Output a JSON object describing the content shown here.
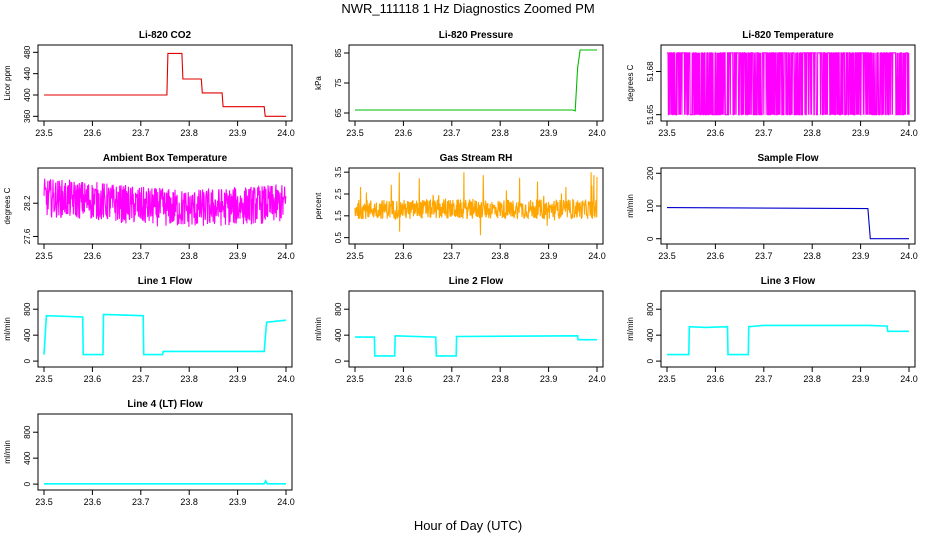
{
  "figure": {
    "title": "NWR_111118  1 Hz Diagnostics Zoomed PM",
    "xlabel": "Hour of Day (UTC)"
  },
  "chart_data": [
    {
      "type": "line",
      "title": "Li-820 CO2",
      "ylabel": "Licor ppm",
      "color": "#e00000",
      "xlim": [
        23.5,
        24.0
      ],
      "xticks": [
        "23.5",
        "23.6",
        "23.7",
        "23.8",
        "23.9",
        "24.0"
      ],
      "ylim": [
        355,
        490
      ],
      "yticks": [
        360,
        400,
        440,
        480
      ],
      "x": [
        23.5,
        23.752,
        23.754,
        23.756,
        23.785,
        23.787,
        23.825,
        23.827,
        23.868,
        23.87,
        23.955,
        23.957,
        24.0
      ],
      "values": [
        400,
        400,
        400,
        478,
        478,
        430,
        430,
        404,
        404,
        378,
        378,
        360,
        360
      ]
    },
    {
      "type": "line",
      "title": "Li-820 Pressure",
      "ylabel": "kPa",
      "color": "#00bb00",
      "xlim": [
        23.5,
        24.0
      ],
      "xticks": [
        "23.5",
        "23.6",
        "23.7",
        "23.8",
        "23.9",
        "24.0"
      ],
      "ylim": [
        63,
        87
      ],
      "yticks": [
        65,
        75,
        85
      ],
      "x": [
        23.5,
        23.95,
        23.955,
        23.96,
        23.965,
        24.0
      ],
      "values": [
        66,
        66,
        65.7,
        80,
        86,
        86
      ]
    },
    {
      "type": "line",
      "title": "Li-820 Temperature",
      "ylabel": "degrees C",
      "color": "#ff00ff",
      "xlim": [
        23.5,
        24.0
      ],
      "xticks": [
        "23.5",
        "23.6",
        "23.7",
        "23.8",
        "23.9",
        "24.0"
      ],
      "ylim": [
        51.647,
        51.697
      ],
      "yticks": [
        51.65,
        51.68
      ],
      "x": [
        23.5,
        24.0
      ],
      "values": [
        51.693,
        51.693
      ],
      "noise": "dense switching between 51.693 and 51.650"
    },
    {
      "type": "line",
      "title": "Ambient Box Temperature",
      "ylabel": "degrees C",
      "color": "#ff00ff",
      "xlim": [
        23.5,
        24.0
      ],
      "xticks": [
        "23.5",
        "23.6",
        "23.7",
        "23.8",
        "23.9",
        "24.0"
      ],
      "ylim": [
        27.5,
        28.8
      ],
      "yticks": [
        27.6,
        28.2
      ],
      "x": [
        23.5,
        23.6,
        23.7,
        23.8,
        23.9,
        24.0
      ],
      "values": [
        28.3,
        28.25,
        28.15,
        28.1,
        28.15,
        28.2
      ]
    },
    {
      "type": "line",
      "title": "Gas Stream RH",
      "ylabel": "percent",
      "color": "#ffa500",
      "xlim": [
        23.5,
        24.0
      ],
      "xticks": [
        "23.5",
        "23.6",
        "23.7",
        "23.8",
        "23.9",
        "24.0"
      ],
      "ylim": [
        0.3,
        3.6
      ],
      "yticks": [
        0.5,
        1.5,
        2.5,
        3.5
      ],
      "x": [
        23.5,
        23.6,
        23.7,
        23.8,
        23.9,
        24.0
      ],
      "values": [
        1.8,
        1.8,
        1.8,
        1.8,
        1.8,
        1.8
      ]
    },
    {
      "type": "line",
      "title": "Sample Flow",
      "ylabel": "ml/min",
      "color": "#0000cc",
      "xlim": [
        23.5,
        24.0
      ],
      "xticks": [
        "23.5",
        "23.6",
        "23.7",
        "23.8",
        "23.9",
        "24.0"
      ],
      "ylim": [
        -10,
        210
      ],
      "yticks": [
        0,
        100,
        200
      ],
      "x": [
        23.5,
        23.915,
        23.92,
        24.0
      ],
      "values": [
        95,
        92,
        0,
        0
      ]
    },
    {
      "type": "line",
      "title": "Line 1 Flow",
      "ylabel": "ml/min",
      "color": "#00ffff",
      "xlim": [
        23.5,
        24.0
      ],
      "xticks": [
        "23.5",
        "23.6",
        "23.7",
        "23.8",
        "23.9",
        "24.0"
      ],
      "ylim": [
        -60,
        1050
      ],
      "yticks": [
        0,
        400,
        800
      ],
      "x": [
        23.5,
        23.505,
        23.58,
        23.581,
        23.622,
        23.623,
        23.705,
        23.706,
        23.745,
        23.746,
        23.955,
        23.96,
        24.0
      ],
      "values": [
        100,
        700,
        680,
        100,
        100,
        720,
        700,
        100,
        100,
        150,
        150,
        600,
        630
      ]
    },
    {
      "type": "line",
      "title": "Line 2 Flow",
      "ylabel": "ml/min",
      "color": "#00ffff",
      "xlim": [
        23.5,
        24.0
      ],
      "xticks": [
        "23.5",
        "23.6",
        "23.7",
        "23.8",
        "23.9",
        "24.0"
      ],
      "ylim": [
        -60,
        1050
      ],
      "yticks": [
        0,
        400,
        800
      ],
      "x": [
        23.5,
        23.54,
        23.541,
        23.582,
        23.583,
        23.667,
        23.668,
        23.709,
        23.71,
        23.96,
        23.961,
        24.0
      ],
      "values": [
        370,
        370,
        80,
        80,
        390,
        370,
        80,
        80,
        380,
        390,
        330,
        330
      ]
    },
    {
      "type": "line",
      "title": "Line 3 Flow",
      "ylabel": "ml/min",
      "color": "#00ffff",
      "xlim": [
        23.5,
        24.0
      ],
      "xticks": [
        "23.5",
        "23.6",
        "23.7",
        "23.8",
        "23.9",
        "24.0"
      ],
      "ylim": [
        -60,
        1050
      ],
      "yticks": [
        0,
        400,
        800
      ],
      "x": [
        23.5,
        23.501,
        23.545,
        23.546,
        23.58,
        23.625,
        23.626,
        23.668,
        23.669,
        23.7,
        23.92,
        23.955,
        23.956,
        24.0
      ],
      "values": [
        100,
        100,
        100,
        530,
        520,
        530,
        100,
        100,
        530,
        550,
        550,
        540,
        460,
        460
      ]
    },
    {
      "type": "line",
      "title": "Line 4 (LT) Flow",
      "ylabel": "ml/min",
      "color": "#00ffff",
      "xlim": [
        23.5,
        24.0
      ],
      "xticks": [
        "23.5",
        "23.6",
        "23.7",
        "23.8",
        "23.9",
        "24.0"
      ],
      "ylim": [
        -60,
        1050
      ],
      "yticks": [
        0,
        400,
        800
      ],
      "x": [
        23.5,
        23.955,
        23.958,
        23.961,
        24.0
      ],
      "values": [
        5,
        5,
        50,
        5,
        5
      ]
    }
  ]
}
